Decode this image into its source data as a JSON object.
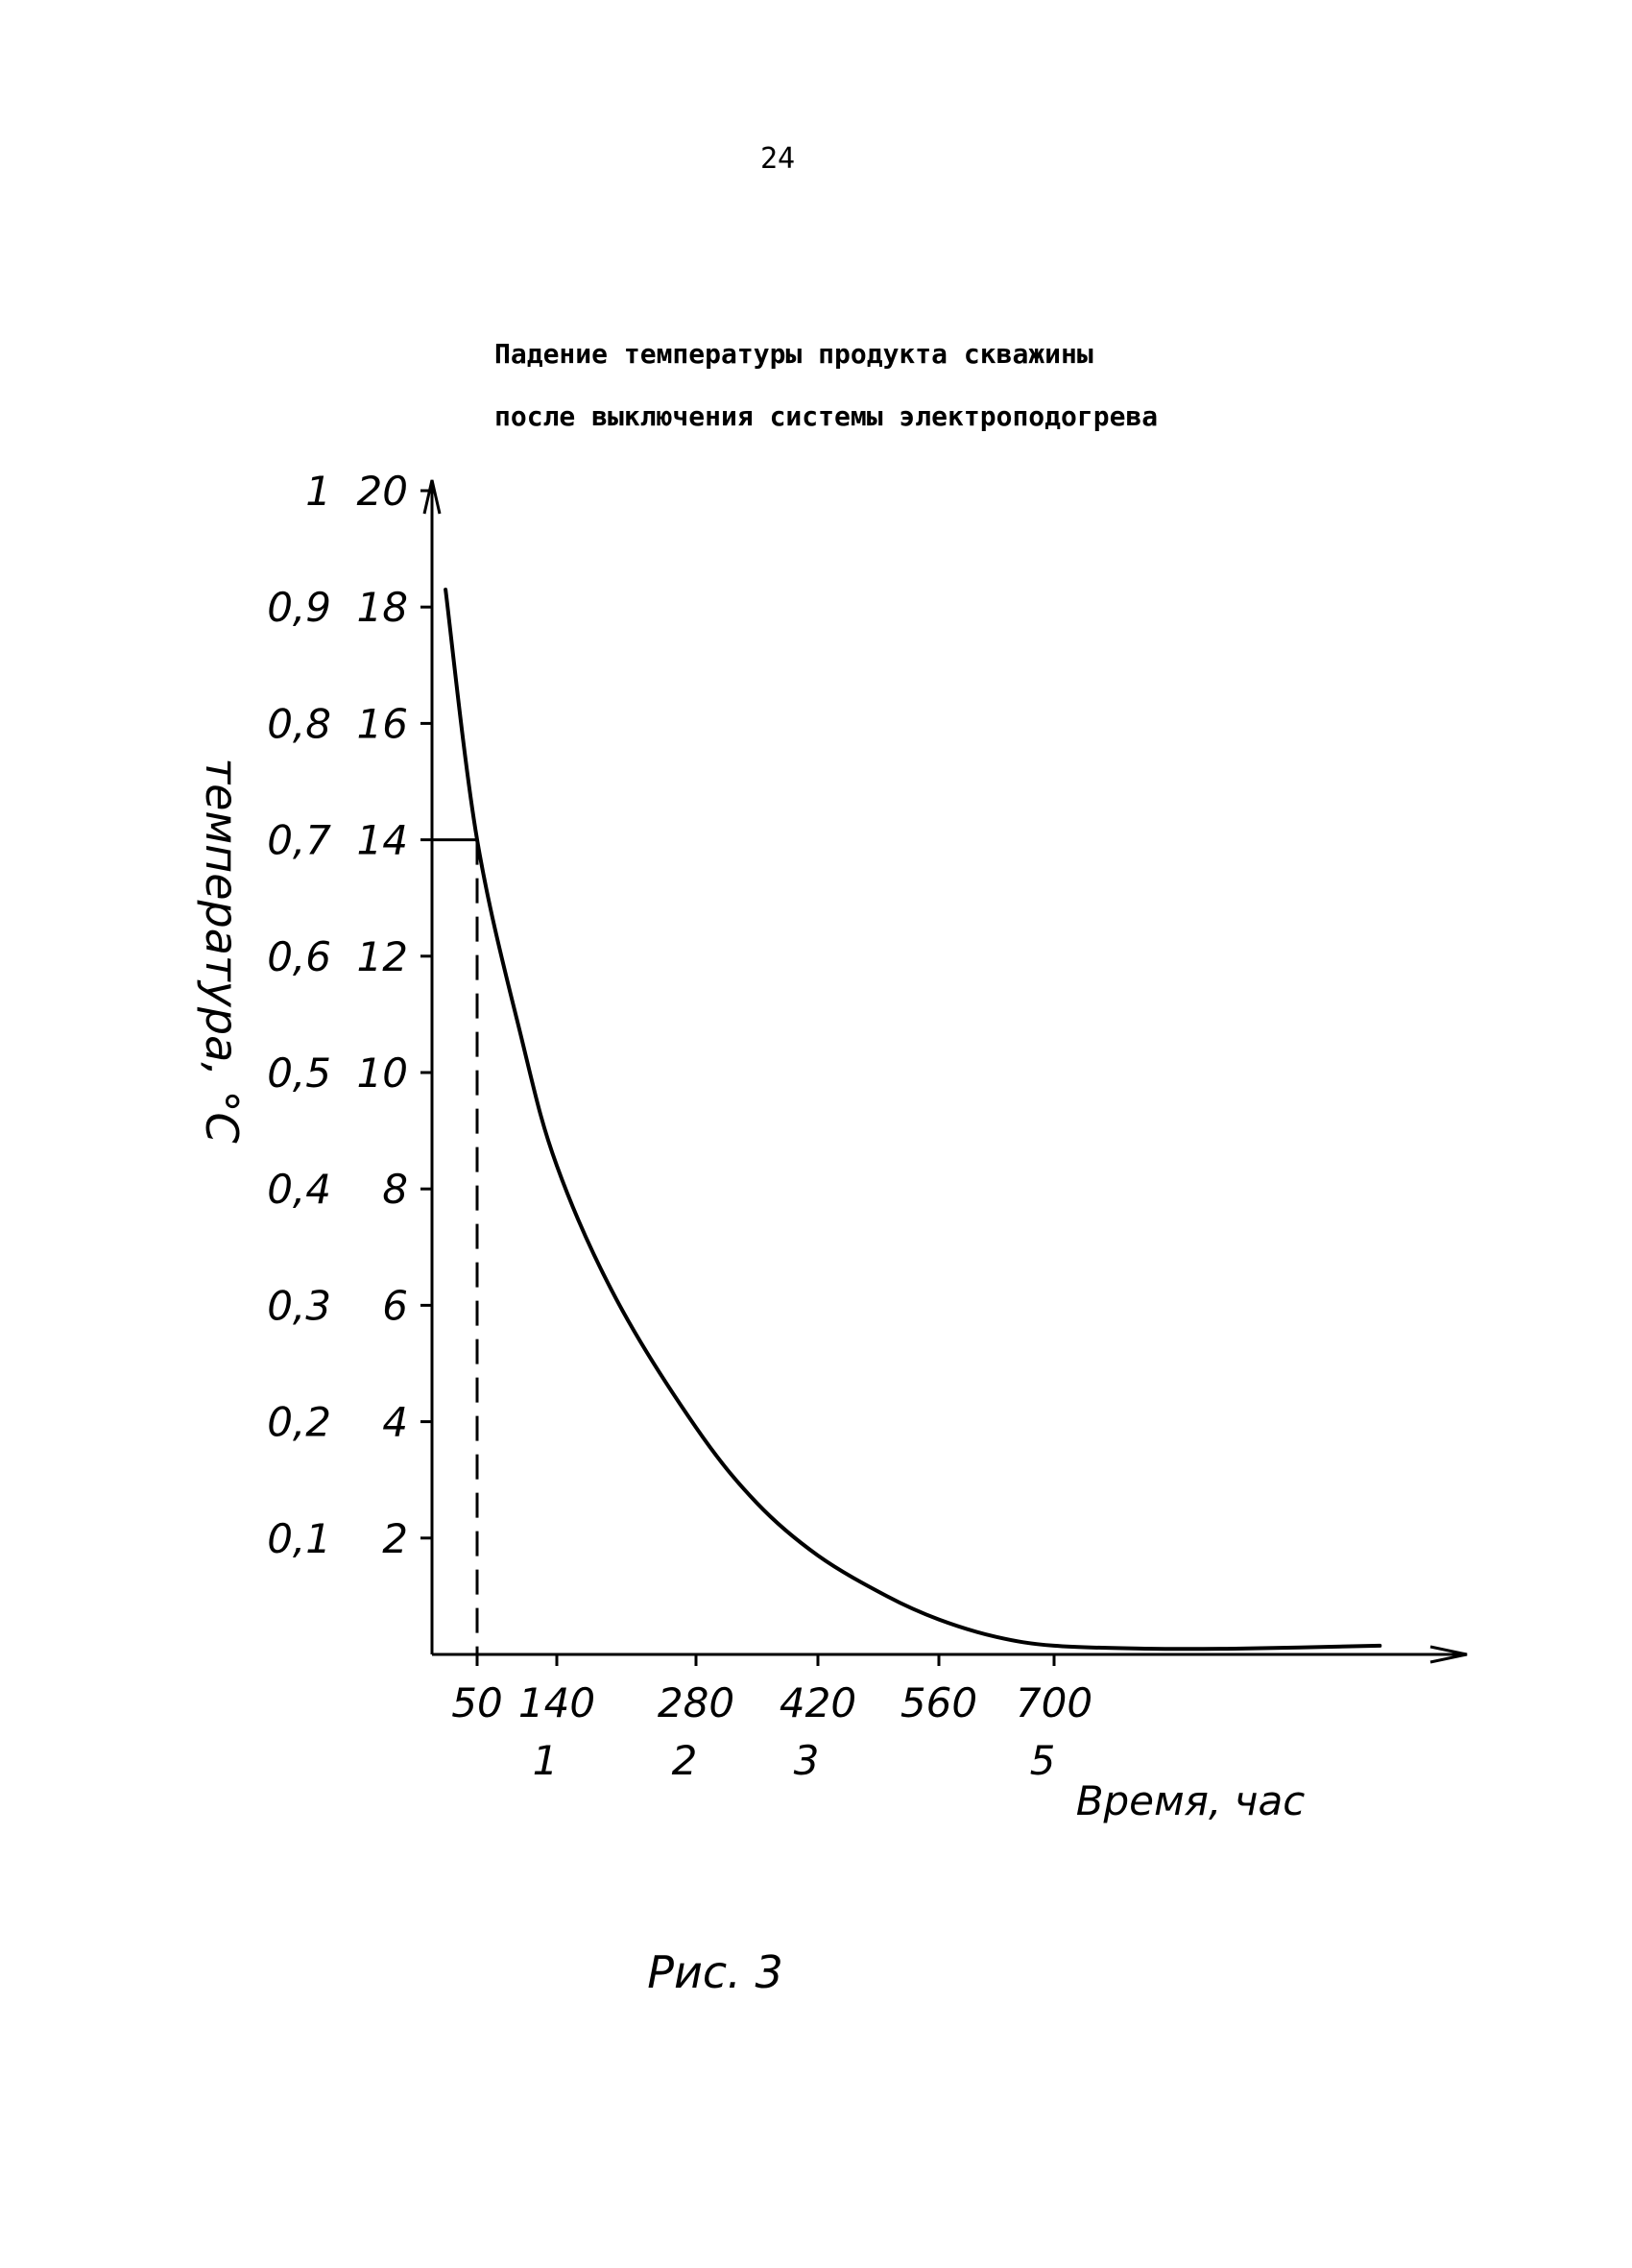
{
  "page": {
    "page_number": "24",
    "figure_caption": "Рис. 3"
  },
  "chart_data": {
    "type": "line",
    "title": "Падение температуры продукта скважины после выключения системы электроподогрева",
    "title_lines": [
      "Падение температуры продукта скважины",
      "после выключения системы электроподогрева"
    ],
    "xlabel": "Время, час",
    "ylabel": "температура, °С",
    "x_ticks_primary": [
      "50",
      "140",
      "280",
      "420",
      "560",
      "700"
    ],
    "x_ticks_secondary": [
      "1",
      "2",
      "3",
      "5"
    ],
    "y_ticks_primary": [
      "2",
      "4",
      "6",
      "8",
      "10",
      "12",
      "14",
      "16",
      "18",
      "20"
    ],
    "y_ticks_secondary": [
      "0,1",
      "0,2",
      "0,3",
      "0,4",
      "0,5",
      "0,6",
      "0,7",
      "0,8",
      "0,9",
      "1"
    ],
    "xlim": [
      0,
      1100
    ],
    "ylim": [
      0,
      22
    ],
    "grid": false,
    "series": [
      {
        "x": [
          15,
          50,
          100,
          140,
          200,
          280,
          350,
          420,
          500,
          560,
          630,
          700,
          800,
          900,
          1060
        ],
        "y": [
          18.3,
          14.0,
          10.6,
          8.4,
          6.1,
          3.9,
          2.6,
          1.7,
          1.0,
          0.6,
          0.3,
          0.15,
          0.1,
          0.1,
          0.15
        ]
      }
    ],
    "annotations": [
      {
        "text": "dashed reference at x = 50, y = 14"
      }
    ],
    "colors": {
      "ink": "#000000",
      "background": "#ffffff"
    }
  }
}
